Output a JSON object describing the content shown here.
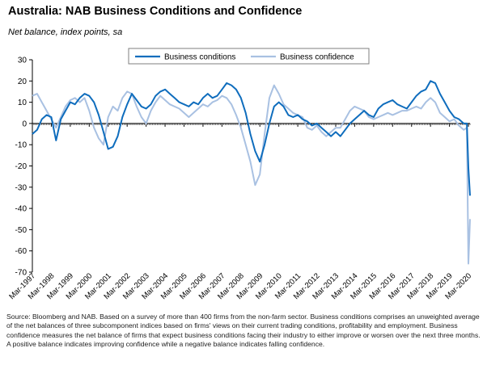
{
  "header": {
    "title": "Australia: NAB Business Conditions and Confidence",
    "subtitle": "Net balance, index points, sa"
  },
  "source_note": "Source: Bloomberg and NAB. Based on a survey of more than 400 firms from the non-farm sector. Business conditions comprises an unweighted average of the net balances of three subcomponent indices based on firms' views on their current trading conditions, profitability and employment. Business confidence measures the net balance of firms that expect business conditions facing their industry to either improve or worsen over the next three months. A positive balance indicates improving confidence while a negative balance indicates falling confidence.",
  "colors": {
    "conditions": "#0f6dbd",
    "confidence": "#a9c1e2",
    "axis": "#000000"
  },
  "chart_data": {
    "type": "line",
    "title": "Australia: NAB Business Conditions and Confidence",
    "subtitle": "Net balance, index points, sa",
    "ylim": [
      -70,
      30
    ],
    "yticks": [
      30,
      20,
      10,
      0,
      -10,
      -20,
      -30,
      -40,
      -50,
      -60,
      -70
    ],
    "xlim": [
      "1997-03",
      "2020-04"
    ],
    "xtick_labels": [
      "Mar-1997",
      "Mar-1998",
      "Mar-1999",
      "Mar-2000",
      "Mar-2001",
      "Mar-2002",
      "Mar-2003",
      "Mar-2004",
      "Mar-2005",
      "Mar-2006",
      "Mar-2007",
      "Mar-2008",
      "Mar-2009",
      "Mar-2010",
      "Mar-2011",
      "Mar-2012",
      "Mar-2013",
      "Mar-2014",
      "Mar-2015",
      "Mar-2016",
      "Mar-2017",
      "Mar-2018",
      "Mar-2019",
      "Mar-2020"
    ],
    "grid": false,
    "legend": "top-right",
    "series": [
      {
        "name": "Business conditions",
        "points": [
          [
            "1997-03",
            -5
          ],
          [
            "1997-06",
            -3
          ],
          [
            "1997-09",
            2
          ],
          [
            "1997-12",
            4
          ],
          [
            "1998-03",
            3
          ],
          [
            "1998-06",
            -8
          ],
          [
            "1998-09",
            2
          ],
          [
            "1998-12",
            6
          ],
          [
            "1999-03",
            10
          ],
          [
            "1999-06",
            9
          ],
          [
            "1999-09",
            12
          ],
          [
            "1999-12",
            14
          ],
          [
            "2000-03",
            13
          ],
          [
            "2000-06",
            10
          ],
          [
            "2000-09",
            4
          ],
          [
            "2000-12",
            -4
          ],
          [
            "2001-03",
            -12
          ],
          [
            "2001-06",
            -11
          ],
          [
            "2001-09",
            -6
          ],
          [
            "2001-12",
            3
          ],
          [
            "2002-03",
            9
          ],
          [
            "2002-06",
            14
          ],
          [
            "2002-09",
            11
          ],
          [
            "2002-12",
            8
          ],
          [
            "2003-03",
            7
          ],
          [
            "2003-06",
            9
          ],
          [
            "2003-09",
            13
          ],
          [
            "2003-12",
            15
          ],
          [
            "2004-03",
            16
          ],
          [
            "2004-06",
            14
          ],
          [
            "2004-09",
            12
          ],
          [
            "2004-12",
            10
          ],
          [
            "2005-03",
            9
          ],
          [
            "2005-06",
            8
          ],
          [
            "2005-09",
            10
          ],
          [
            "2005-12",
            9
          ],
          [
            "2006-03",
            12
          ],
          [
            "2006-06",
            14
          ],
          [
            "2006-09",
            12
          ],
          [
            "2006-12",
            13
          ],
          [
            "2007-03",
            16
          ],
          [
            "2007-06",
            19
          ],
          [
            "2007-09",
            18
          ],
          [
            "2007-12",
            16
          ],
          [
            "2008-03",
            12
          ],
          [
            "2008-06",
            5
          ],
          [
            "2008-09",
            -5
          ],
          [
            "2008-12",
            -13
          ],
          [
            "2009-03",
            -18
          ],
          [
            "2009-06",
            -10
          ],
          [
            "2009-09",
            0
          ],
          [
            "2009-12",
            8
          ],
          [
            "2010-03",
            10
          ],
          [
            "2010-06",
            8
          ],
          [
            "2010-09",
            4
          ],
          [
            "2010-12",
            3
          ],
          [
            "2011-03",
            4
          ],
          [
            "2011-06",
            2
          ],
          [
            "2011-09",
            1
          ],
          [
            "2011-12",
            -1
          ],
          [
            "2012-03",
            0
          ],
          [
            "2012-06",
            -2
          ],
          [
            "2012-09",
            -4
          ],
          [
            "2012-12",
            -6
          ],
          [
            "2013-03",
            -4
          ],
          [
            "2013-06",
            -6
          ],
          [
            "2013-09",
            -3
          ],
          [
            "2013-12",
            0
          ],
          [
            "2014-03",
            2
          ],
          [
            "2014-06",
            4
          ],
          [
            "2014-09",
            6
          ],
          [
            "2014-12",
            4
          ],
          [
            "2015-03",
            3
          ],
          [
            "2015-06",
            7
          ],
          [
            "2015-09",
            9
          ],
          [
            "2015-12",
            10
          ],
          [
            "2016-03",
            11
          ],
          [
            "2016-06",
            9
          ],
          [
            "2016-09",
            8
          ],
          [
            "2016-12",
            7
          ],
          [
            "2017-03",
            10
          ],
          [
            "2017-06",
            13
          ],
          [
            "2017-09",
            15
          ],
          [
            "2017-12",
            16
          ],
          [
            "2018-03",
            20
          ],
          [
            "2018-06",
            19
          ],
          [
            "2018-09",
            14
          ],
          [
            "2018-12",
            10
          ],
          [
            "2019-03",
            6
          ],
          [
            "2019-06",
            3
          ],
          [
            "2019-09",
            2
          ],
          [
            "2019-12",
            0
          ],
          [
            "2020-02",
            0
          ],
          [
            "2020-03",
            -21
          ],
          [
            "2020-04",
            -34
          ]
        ]
      },
      {
        "name": "Business confidence",
        "points": [
          [
            "1997-03",
            13
          ],
          [
            "1997-06",
            14
          ],
          [
            "1997-09",
            10
          ],
          [
            "1997-12",
            6
          ],
          [
            "1998-03",
            2
          ],
          [
            "1998-06",
            -2
          ],
          [
            "1998-09",
            3
          ],
          [
            "1998-12",
            8
          ],
          [
            "1999-03",
            11
          ],
          [
            "1999-06",
            12
          ],
          [
            "1999-09",
            10
          ],
          [
            "1999-12",
            12
          ],
          [
            "2000-03",
            6
          ],
          [
            "2000-06",
            -2
          ],
          [
            "2000-09",
            -7
          ],
          [
            "2000-12",
            -10
          ],
          [
            "2001-03",
            3
          ],
          [
            "2001-06",
            8
          ],
          [
            "2001-09",
            6
          ],
          [
            "2001-12",
            12
          ],
          [
            "2002-03",
            15
          ],
          [
            "2002-06",
            14
          ],
          [
            "2002-09",
            8
          ],
          [
            "2002-12",
            3
          ],
          [
            "2003-03",
            0
          ],
          [
            "2003-06",
            6
          ],
          [
            "2003-09",
            10
          ],
          [
            "2003-12",
            13
          ],
          [
            "2004-03",
            11
          ],
          [
            "2004-06",
            9
          ],
          [
            "2004-09",
            8
          ],
          [
            "2004-12",
            7
          ],
          [
            "2005-03",
            5
          ],
          [
            "2005-06",
            3
          ],
          [
            "2005-09",
            5
          ],
          [
            "2005-12",
            7
          ],
          [
            "2006-03",
            9
          ],
          [
            "2006-06",
            8
          ],
          [
            "2006-09",
            10
          ],
          [
            "2006-12",
            11
          ],
          [
            "2007-03",
            13
          ],
          [
            "2007-06",
            12
          ],
          [
            "2007-09",
            9
          ],
          [
            "2007-12",
            4
          ],
          [
            "2008-03",
            -2
          ],
          [
            "2008-06",
            -10
          ],
          [
            "2008-09",
            -18
          ],
          [
            "2008-12",
            -29
          ],
          [
            "2009-03",
            -24
          ],
          [
            "2009-06",
            -5
          ],
          [
            "2009-09",
            12
          ],
          [
            "2009-12",
            18
          ],
          [
            "2010-03",
            14
          ],
          [
            "2010-06",
            9
          ],
          [
            "2010-09",
            7
          ],
          [
            "2010-12",
            5
          ],
          [
            "2011-03",
            4
          ],
          [
            "2011-06",
            3
          ],
          [
            "2011-09",
            -2
          ],
          [
            "2011-12",
            -3
          ],
          [
            "2012-03",
            -1
          ],
          [
            "2012-06",
            -4
          ],
          [
            "2012-09",
            -6
          ],
          [
            "2012-12",
            -4
          ],
          [
            "2013-03",
            -2
          ],
          [
            "2013-06",
            -2
          ],
          [
            "2013-09",
            2
          ],
          [
            "2013-12",
            6
          ],
          [
            "2014-03",
            8
          ],
          [
            "2014-06",
            7
          ],
          [
            "2014-09",
            6
          ],
          [
            "2014-12",
            3
          ],
          [
            "2015-03",
            2
          ],
          [
            "2015-06",
            3
          ],
          [
            "2015-09",
            4
          ],
          [
            "2015-12",
            5
          ],
          [
            "2016-03",
            4
          ],
          [
            "2016-06",
            5
          ],
          [
            "2016-09",
            6
          ],
          [
            "2016-12",
            6
          ],
          [
            "2017-03",
            7
          ],
          [
            "2017-06",
            8
          ],
          [
            "2017-09",
            7
          ],
          [
            "2017-12",
            10
          ],
          [
            "2018-03",
            12
          ],
          [
            "2018-06",
            10
          ],
          [
            "2018-09",
            5
          ],
          [
            "2018-12",
            3
          ],
          [
            "2019-03",
            1
          ],
          [
            "2019-06",
            2
          ],
          [
            "2019-09",
            -1
          ],
          [
            "2019-12",
            -3
          ],
          [
            "2020-02",
            -2
          ],
          [
            "2020-03",
            -66
          ],
          [
            "2020-04",
            -45
          ]
        ]
      }
    ]
  }
}
